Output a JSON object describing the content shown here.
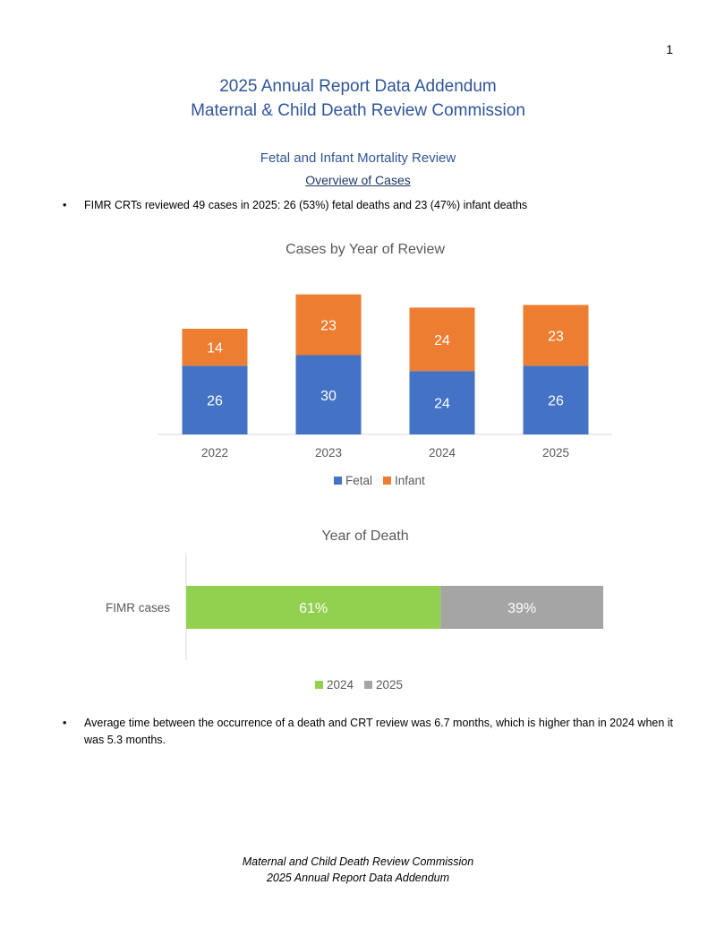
{
  "page_number": "1",
  "title_line1": "2025 Annual Report Data Addendum",
  "title_line2": "Maternal & Child Death Review Commission",
  "section_heading": "Fetal and Infant Mortality Review",
  "sub_heading": "Overview of Cases",
  "bullets": [
    "FIMR CRTs reviewed 49 cases in 2025: 26 (53%) fetal deaths and 23 (47%) infant deaths",
    "Average time between the occurrence of a death and CRT review was 6.7 months, which is higher than in 2024 when it was 5.3 months."
  ],
  "chart_data": [
    {
      "type": "bar",
      "stacked": true,
      "title": "Cases by Year of Review",
      "categories": [
        "2022",
        "2023",
        "2024",
        "2025"
      ],
      "series": [
        {
          "name": "Fetal",
          "values": [
            26,
            30,
            24,
            26
          ],
          "color": "#4472c4"
        },
        {
          "name": "Infant",
          "values": [
            14,
            23,
            24,
            23
          ],
          "color": "#ed7d31"
        }
      ],
      "legend": "bottom",
      "grid": false
    },
    {
      "type": "bar",
      "orientation": "horizontal",
      "stacked": true,
      "percent": true,
      "title": "Year of Death",
      "categories": [
        "FIMR cases"
      ],
      "series": [
        {
          "name": "2024",
          "values": [
            61
          ],
          "label": "61%",
          "color": "#92d050"
        },
        {
          "name": "2025",
          "values": [
            39
          ],
          "label": "39%",
          "color": "#a5a5a5"
        }
      ],
      "legend": "bottom",
      "grid": false
    }
  ],
  "footer_line1": "Maternal and Child Death Review Commission",
  "footer_line2": "2025 Annual Report Data Addendum"
}
